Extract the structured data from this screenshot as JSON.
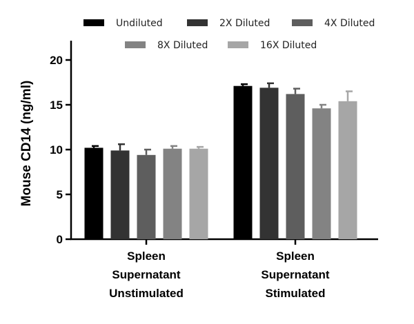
{
  "chart_data": {
    "type": "bar",
    "title": "",
    "xlabel": "",
    "ylabel": "Mouse CD14 (ng/ml)",
    "ylim": [
      0,
      20
    ],
    "yticks": [
      0,
      5,
      10,
      15,
      20
    ],
    "legend": "top",
    "grid": false,
    "categories": [
      [
        "Spleen",
        "Supernatant",
        "Unstimulated"
      ],
      [
        "Spleen",
        "Supernatant",
        "Stimulated"
      ]
    ],
    "series": [
      {
        "name": "Undiluted",
        "color": "#000000",
        "values": [
          10.2,
          17.1
        ],
        "errors": [
          0.2,
          0.2
        ]
      },
      {
        "name": "2X Diluted",
        "color": "#333333",
        "values": [
          9.9,
          16.9
        ],
        "errors": [
          0.7,
          0.5
        ]
      },
      {
        "name": "4X Diluted",
        "color": "#5e5e5e",
        "values": [
          9.4,
          16.2
        ],
        "errors": [
          0.6,
          0.6
        ]
      },
      {
        "name": "8X Diluted",
        "color": "#838383",
        "values": [
          10.1,
          14.6
        ],
        "errors": [
          0.3,
          0.4
        ]
      },
      {
        "name": "16X Diluted",
        "color": "#a6a6a6",
        "values": [
          10.1,
          15.4
        ],
        "errors": [
          0.2,
          1.1
        ]
      }
    ]
  }
}
